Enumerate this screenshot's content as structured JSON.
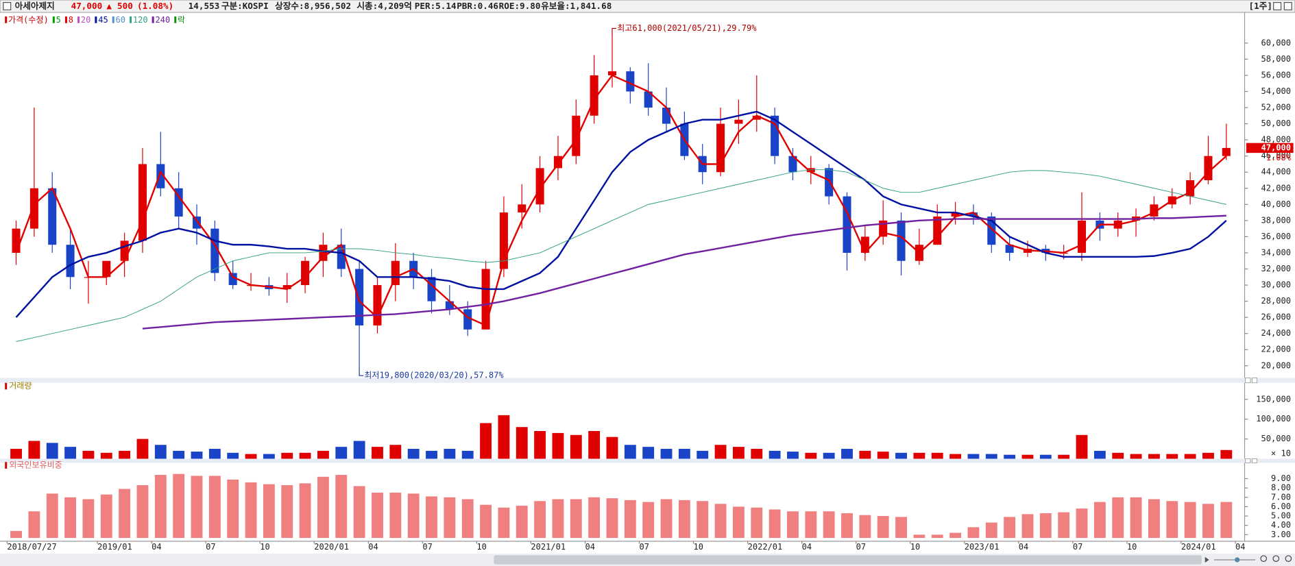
{
  "header": {
    "name": "아세아제지",
    "price": "47,000",
    "change_sign": "▲",
    "change": "500",
    "change_pct": "(1.08%)",
    "volume": "14,553",
    "market": "구분:KOSPI",
    "shares": "상장수:8,956,502",
    "market_cap": "시총:4,209억",
    "per": "PER:5.14",
    "pbr": "PBR:0.46",
    "roe": "ROE:9.80",
    "reserve": "유보율:1,841.68",
    "period": "[1주]"
  },
  "chart_data": [
    {
      "type": "candlestick",
      "up_color": "#e00000",
      "down_color": "#1a44c8",
      "ylim": [
        18600,
        63600
      ],
      "yticks": [
        {
          "value": 20000,
          "label": "20,000"
        },
        {
          "value": 22000,
          "label": "22,000"
        },
        {
          "value": 24000,
          "label": "24,000"
        },
        {
          "value": 26000,
          "label": "26,000"
        },
        {
          "value": 28000,
          "label": "28,000"
        },
        {
          "value": 30000,
          "label": "30,000"
        },
        {
          "value": 32000,
          "label": "32,000"
        },
        {
          "value": 34000,
          "label": "34,000"
        },
        {
          "value": 36000,
          "label": "36,000"
        },
        {
          "value": 38000,
          "label": "38,000"
        },
        {
          "value": 40000,
          "label": "40,000"
        },
        {
          "value": 42000,
          "label": "42,000"
        },
        {
          "value": 44000,
          "label": "44,000"
        },
        {
          "value": 46000,
          "label": "46,000"
        },
        {
          "value": 48000,
          "label": "48,000"
        },
        {
          "value": 50000,
          "label": "50,000"
        },
        {
          "value": 52000,
          "label": "52,000"
        },
        {
          "value": 54000,
          "label": "54,000"
        },
        {
          "value": 56000,
          "label": "56,000"
        },
        {
          "value": 58000,
          "label": "58,000"
        },
        {
          "value": 60000,
          "label": "60,000"
        }
      ],
      "open": [
        34000,
        37000,
        42000,
        35000,
        31000,
        31000,
        33000,
        35500,
        45000,
        42000,
        38500,
        37000,
        31500,
        30000,
        30000,
        29500,
        30000,
        33000,
        35000,
        32000,
        25000,
        30000,
        33000,
        31000,
        28000,
        27000,
        24500,
        32000,
        39000,
        40000,
        44500,
        46000,
        51000,
        56000,
        56500,
        54000,
        52000,
        50000,
        46000,
        44000,
        50000,
        50500,
        51000,
        46000,
        44000,
        44500,
        41000,
        34000,
        36000,
        38000,
        33000,
        35000,
        38500,
        39000,
        38500,
        35000,
        34000,
        34500,
        34000,
        34000,
        38000,
        37000,
        38000,
        38500,
        40000,
        41000,
        43000,
        46000,
        null
      ],
      "high": [
        38000,
        52000,
        44000,
        37000,
        33000,
        33000,
        36500,
        47000,
        49000,
        44000,
        40000,
        38000,
        33000,
        31500,
        31000,
        31500,
        33500,
        36500,
        37000,
        33000,
        31000,
        35200,
        34000,
        32000,
        30000,
        28000,
        33000,
        41000,
        42500,
        46000,
        48500,
        53000,
        58500,
        61000,
        57000,
        57500,
        54500,
        51500,
        47500,
        52000,
        53000,
        56000,
        52000,
        47000,
        46000,
        45000,
        41500,
        37500,
        40500,
        39000,
        37000,
        40000,
        40300,
        40000,
        39000,
        36000,
        35500,
        35000,
        35000,
        41500,
        39000,
        39000,
        39500,
        41000,
        42000,
        44000,
        48500,
        50000,
        null
      ],
      "low": [
        32500,
        36000,
        34000,
        29500,
        27700,
        30000,
        31000,
        34000,
        41000,
        37000,
        35000,
        30500,
        29500,
        29300,
        28700,
        27800,
        29000,
        31000,
        31000,
        19800,
        24000,
        28000,
        29500,
        26500,
        26300,
        23700,
        24500,
        31000,
        37000,
        39000,
        43000,
        45000,
        50000,
        54500,
        52500,
        51000,
        49000,
        45500,
        42500,
        43500,
        47500,
        49000,
        45000,
        43000,
        42500,
        40000,
        31800,
        33000,
        35000,
        31200,
        32500,
        35000,
        37500,
        37500,
        34000,
        33000,
        33500,
        33000,
        33200,
        33000,
        35500,
        36000,
        36000,
        38000,
        39500,
        40000,
        42500,
        45500,
        null
      ],
      "close": [
        37000,
        42000,
        35000,
        31000,
        31000,
        33000,
        35500,
        45000,
        42000,
        38500,
        37000,
        31500,
        30000,
        30000,
        29500,
        30000,
        33000,
        35000,
        32000,
        25000,
        30000,
        33000,
        31000,
        28000,
        27000,
        24500,
        32000,
        39000,
        40000,
        44500,
        46000,
        51000,
        56000,
        56500,
        54000,
        52000,
        50000,
        46000,
        44000,
        50000,
        50500,
        51000,
        46000,
        44000,
        44500,
        41000,
        34000,
        36000,
        38000,
        33000,
        35000,
        38500,
        39000,
        38500,
        35000,
        34000,
        34500,
        34000,
        34000,
        38000,
        37000,
        38000,
        38500,
        40000,
        41000,
        43000,
        46000,
        47000,
        null
      ],
      "series": [
        {
          "name": "가격(수정)",
          "color": "#d00000"
        },
        {
          "name": "5",
          "color": "#00a000"
        },
        {
          "name": "8",
          "color": "#e00000",
          "width": 2,
          "values": [
            34000,
            40000,
            42000,
            37000,
            31000,
            31000,
            33000,
            38000,
            44000,
            41000,
            38000,
            35000,
            31000,
            30000,
            29800,
            29500,
            31000,
            33500,
            35000,
            28000,
            26000,
            31000,
            32000,
            30000,
            28000,
            26000,
            25000,
            33000,
            38000,
            42000,
            45000,
            48000,
            53000,
            56000,
            55000,
            54000,
            52000,
            48000,
            45000,
            45000,
            49000,
            51000,
            50000,
            46000,
            44000,
            43000,
            39000,
            34000,
            36500,
            36000,
            34000,
            36000,
            38500,
            39000,
            37000,
            35000,
            34300,
            34200,
            34000,
            35000,
            37500,
            37500,
            38000,
            39000,
            40500,
            41500,
            44000,
            46000,
            null
          ]
        },
        {
          "name": "20",
          "color": "#c050c0"
        },
        {
          "name": "45",
          "color": "#0010a0",
          "width": 2,
          "values": [
            26000,
            28500,
            31000,
            32500,
            33500,
            34000,
            34800,
            35500,
            36500,
            37000,
            36500,
            35500,
            35000,
            35000,
            34800,
            34500,
            34500,
            34200,
            34000,
            33000,
            31000,
            31000,
            31000,
            30800,
            30500,
            29800,
            29500,
            29500,
            30500,
            31500,
            33500,
            37000,
            40500,
            44000,
            46500,
            48000,
            49000,
            50000,
            50500,
            50500,
            51000,
            51500,
            50500,
            49000,
            47500,
            46000,
            44500,
            43000,
            41000,
            40000,
            39500,
            39000,
            39000,
            38500,
            38000,
            36000,
            35000,
            34000,
            33500,
            33500,
            33500,
            33500,
            33500,
            33600,
            34000,
            34500,
            36000,
            38000,
            null
          ]
        },
        {
          "name": "60",
          "color": "#5090d0"
        },
        {
          "name": "120",
          "color": "#30a080",
          "width": 0.8,
          "values": [
            23000,
            23500,
            24000,
            24500,
            25000,
            25500,
            26000,
            27000,
            28000,
            29500,
            31000,
            32000,
            33000,
            33500,
            34000,
            34000,
            34000,
            34200,
            34500,
            34500,
            34300,
            34000,
            33800,
            33500,
            33300,
            33000,
            32800,
            33000,
            33500,
            34000,
            35000,
            36000,
            37000,
            38000,
            39000,
            40000,
            40500,
            41000,
            41500,
            42000,
            42500,
            43000,
            43500,
            44000,
            44300,
            44300,
            44000,
            43000,
            42000,
            41500,
            41500,
            42000,
            42500,
            43000,
            43500,
            44000,
            44200,
            44200,
            44000,
            43800,
            43500,
            43000,
            42500,
            42000,
            41500,
            41000,
            40500,
            40000,
            null
          ]
        },
        {
          "name": "240",
          "color": "#7020a0",
          "width": 2,
          "values": [
            null,
            null,
            null,
            null,
            null,
            null,
            null,
            24600,
            24800,
            25000,
            25200,
            25400,
            25500,
            25600,
            25700,
            25800,
            25900,
            26000,
            26100,
            26200,
            26300,
            26400,
            26600,
            26800,
            27000,
            27300,
            27600,
            28000,
            28500,
            29000,
            29600,
            30200,
            30800,
            31400,
            32000,
            32600,
            33200,
            33800,
            34200,
            34600,
            35000,
            35400,
            35800,
            36200,
            36500,
            36800,
            37100,
            37400,
            37600,
            37800,
            38000,
            38100,
            38200,
            38200,
            38200,
            38200,
            38200,
            38200,
            38200,
            38200,
            38200,
            38200,
            38200,
            38300,
            38300,
            38400,
            38500,
            38600,
            null
          ]
        },
        {
          "name": "락",
          "color": "#109010"
        }
      ],
      "high_label": "최고61,000(2021/05/21),29.79%",
      "low_label": "최저19,800(2020/03/20),57.87%",
      "last_change_label": "1.08%"
    },
    {
      "type": "bar",
      "title": "거래량",
      "color_by_price": true,
      "ylim": [
        0,
        187500
      ],
      "yticks": [
        {
          "value": 50000,
          "label": "50,000"
        },
        {
          "value": 100000,
          "label": "100,000"
        },
        {
          "value": 150000,
          "label": "150,000"
        }
      ],
      "unit_label": "× 10",
      "values": [
        25000,
        45000,
        40000,
        30000,
        20000,
        15000,
        20000,
        50000,
        35000,
        20000,
        18000,
        25000,
        15000,
        12000,
        12000,
        15000,
        15000,
        20000,
        30000,
        45000,
        30000,
        35000,
        25000,
        20000,
        25000,
        20000,
        90000,
        110000,
        80000,
        70000,
        65000,
        60000,
        70000,
        55000,
        35000,
        30000,
        25000,
        25000,
        20000,
        35000,
        30000,
        25000,
        20000,
        18000,
        15000,
        15000,
        25000,
        20000,
        18000,
        15000,
        15000,
        15000,
        12000,
        12000,
        12000,
        10000,
        10000,
        10000,
        10000,
        60000,
        20000,
        15000,
        12000,
        12000,
        12000,
        12000,
        15000,
        22000,
        null
      ]
    },
    {
      "type": "bar",
      "title": "외국인보유비중",
      "color": "#f08080",
      "ylim": [
        2.65,
        10.6
      ],
      "yticks": [
        {
          "value": 3,
          "label": "3.00"
        },
        {
          "value": 4,
          "label": "4.00"
        },
        {
          "value": 5,
          "label": "5.00"
        },
        {
          "value": 6,
          "label": "6.00"
        },
        {
          "value": 7,
          "label": "7.00"
        },
        {
          "value": 8,
          "label": "8.00"
        },
        {
          "value": 9,
          "label": "9.00"
        }
      ],
      "values": [
        3.4,
        5.5,
        7.4,
        7.0,
        6.8,
        7.3,
        7.9,
        8.3,
        9.4,
        9.5,
        9.3,
        9.3,
        8.9,
        8.6,
        8.4,
        8.3,
        8.5,
        9.2,
        9.4,
        8.2,
        7.5,
        7.5,
        7.4,
        7.1,
        7.0,
        6.8,
        6.2,
        5.9,
        6.1,
        6.6,
        6.8,
        6.8,
        7.0,
        6.9,
        6.7,
        6.5,
        6.8,
        6.7,
        6.6,
        6.3,
        6.0,
        5.9,
        5.7,
        5.5,
        5.5,
        5.5,
        5.3,
        5.1,
        5.0,
        4.9,
        3.0,
        3.0,
        3.2,
        3.8,
        4.3,
        4.9,
        5.2,
        5.3,
        5.4,
        5.8,
        6.5,
        7.0,
        7.0,
        6.8,
        6.6,
        6.5,
        6.3,
        6.5,
        null
      ],
      "categories": [
        "2018/07/27",
        null,
        null,
        null,
        null,
        "2019/01",
        null,
        null,
        "04",
        null,
        null,
        "07",
        null,
        null,
        "10",
        null,
        null,
        "2020/01",
        null,
        null,
        "04",
        null,
        null,
        "07",
        null,
        null,
        "10",
        null,
        null,
        "2021/01",
        null,
        null,
        "04",
        null,
        null,
        "07",
        null,
        null,
        "10",
        null,
        null,
        "2022/01",
        null,
        null,
        "04",
        null,
        null,
        "07",
        null,
        null,
        "10",
        null,
        null,
        "2023/01",
        null,
        null,
        "04",
        null,
        null,
        "07",
        null,
        null,
        "10",
        null,
        null,
        "2024/01",
        null,
        null,
        "04"
      ]
    }
  ]
}
